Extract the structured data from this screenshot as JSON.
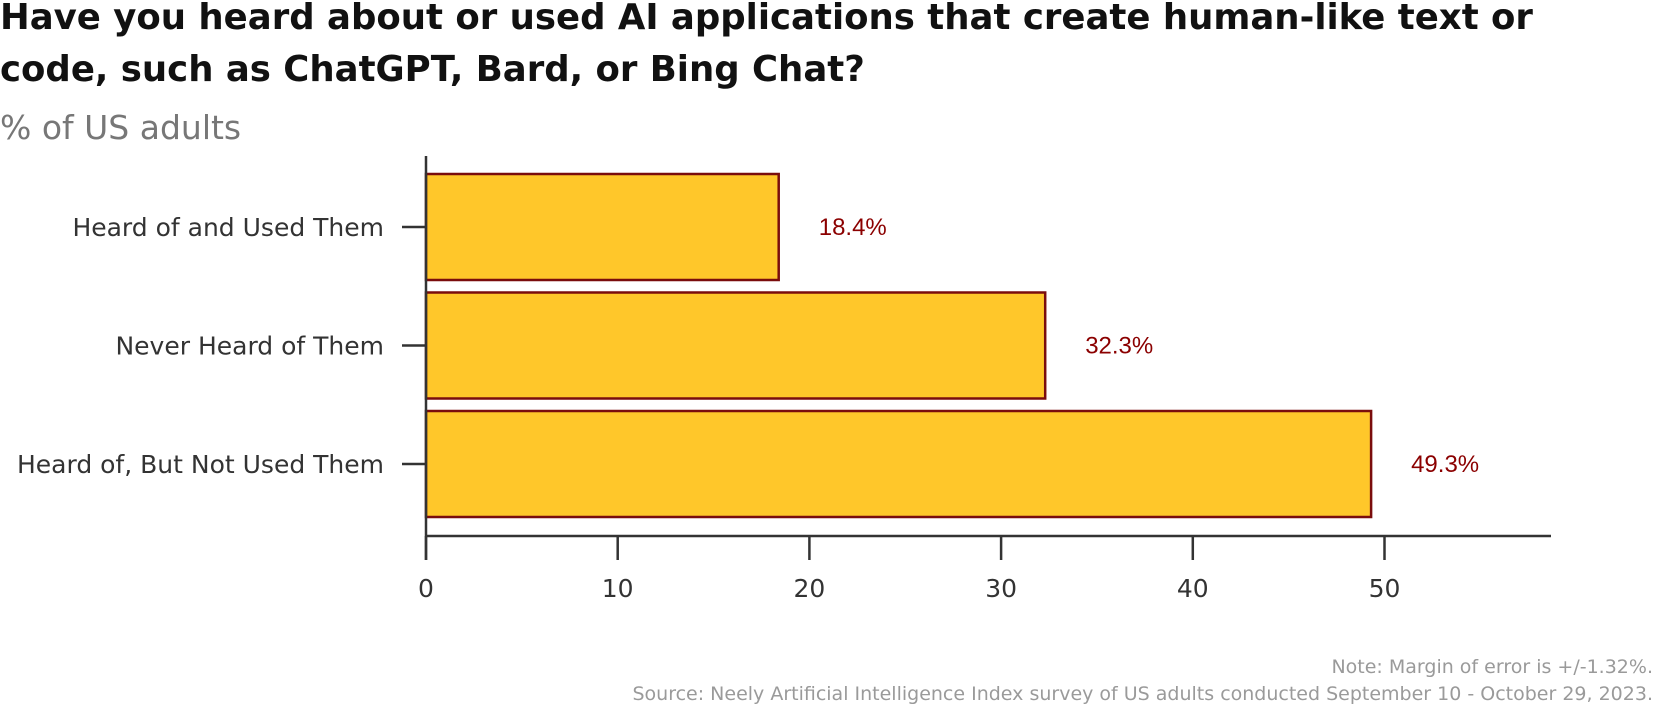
{
  "header": {
    "title": "Have you heard about or used AI applications that create human-like text or code, such as ChatGPT, Bard, or Bing Chat?",
    "subtitle": "% of US adults"
  },
  "footer": {
    "note": "Note: Margin of error is +/-1.32%.",
    "source": "Source: Neely Artificial Intelligence Index survey of US adults conducted September 10 - October 29, 2023."
  },
  "colors": {
    "bar_fill": "#ffc72a",
    "bar_stroke": "#7a0d0d",
    "value_label": "#8b0000",
    "axis": "#333333",
    "category_label": "#333333"
  },
  "chart_data": {
    "type": "bar",
    "orientation": "horizontal",
    "title": "Have you heard about or used AI applications that create human-like text or code, such as ChatGPT, Bard, or Bing Chat?",
    "subtitle": "% of US adults",
    "categories": [
      "Heard of and Used Them",
      "Never Heard of Them",
      "Heard of, But Not Used Them"
    ],
    "values": [
      18.4,
      32.3,
      49.3
    ],
    "value_labels": [
      "18.4%",
      "32.3%",
      "49.3%"
    ],
    "x_ticks": [
      "0",
      "10",
      "20",
      "30",
      "40",
      "50"
    ],
    "xlim": [
      0,
      59
    ],
    "xlabel": "",
    "ylabel": "",
    "grid": false,
    "legend": "none"
  }
}
